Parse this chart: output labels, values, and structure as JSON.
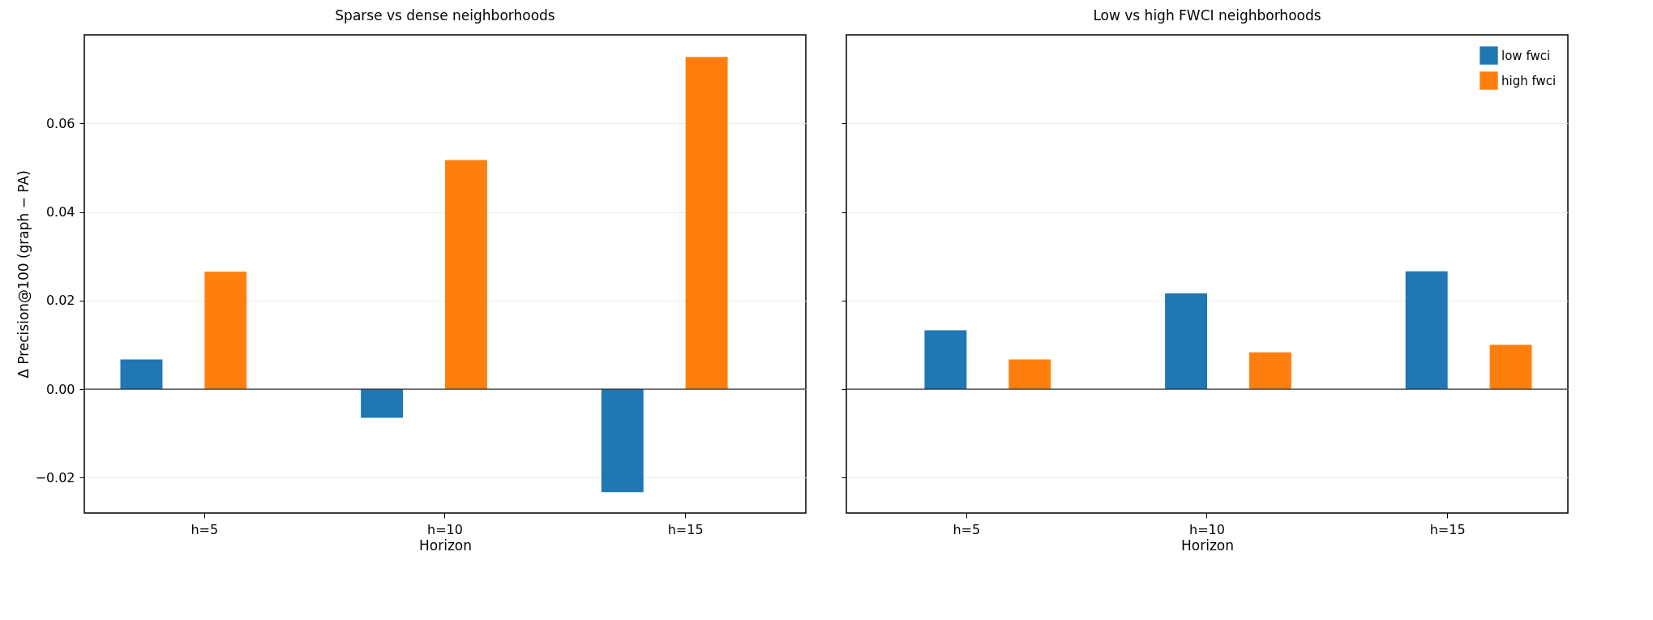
{
  "chart_data": [
    {
      "type": "bar",
      "title": "Sparse vs dense neighborhoods",
      "xlabel": "Horizon",
      "ylabel": "Δ Precision@100 (graph − PA)",
      "categories": [
        "h=5",
        "h=10",
        "h=15"
      ],
      "series": [
        {
          "color": "#1f77b4",
          "values": [
            0.0067,
            -0.0065,
            -0.0233
          ]
        },
        {
          "color": "#ff7f0e",
          "values": [
            0.0265,
            0.0517,
            0.075
          ]
        }
      ],
      "ylim": [
        -0.028,
        0.08
      ],
      "yticks": [
        {
          "value": -0.02,
          "label": "−0.02"
        },
        {
          "value": 0,
          "label": "0.00"
        },
        {
          "value": 0.02,
          "label": "0.02"
        },
        {
          "value": 0.04,
          "label": "0.04"
        },
        {
          "value": 0.06,
          "label": "0.06"
        }
      ],
      "grid": "y",
      "ref_lines": [
        {
          "axis": "y",
          "value": 0
        }
      ]
    },
    {
      "type": "bar",
      "title": "Low vs high FWCI neighborhoods",
      "xlabel": "Horizon",
      "categories": [
        "h=5",
        "h=10",
        "h=15"
      ],
      "series": [
        {
          "name": "low fwci",
          "color": "#1f77b4",
          "values": [
            0.0133,
            0.0216,
            0.0266
          ]
        },
        {
          "name": "high fwci",
          "color": "#ff7f0e",
          "values": [
            0.0067,
            0.0083,
            0.01
          ]
        }
      ],
      "ylim": [
        -0.028,
        0.08
      ],
      "yticks": [
        -0.02,
        0,
        0.02,
        0.04,
        0.06
      ],
      "grid": "y",
      "ref_lines": [
        {
          "axis": "y",
          "value": 0
        }
      ],
      "legend": "top right",
      "tick_labels": "x"
    }
  ]
}
